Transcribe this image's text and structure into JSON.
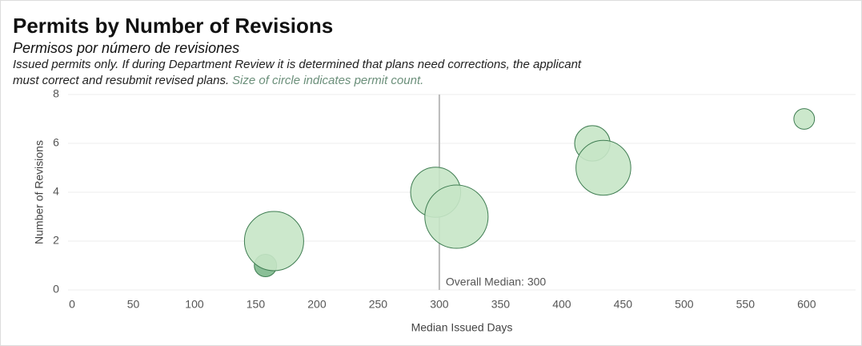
{
  "chart_data": {
    "type": "bubble",
    "title": "Permits by Number of Revisions",
    "subtitle": "Permisos por número de revisiones",
    "description": [
      "Issued permits only. If during Department Review it is determined that plans need corrections, the applicant",
      "must correct and resubmit revised plans."
    ],
    "size_note": "Size of circle indicates permit count.",
    "x_label": "Median Issued Days",
    "y_label": "Number of Revisions",
    "x": [
      158,
      165,
      297,
      314,
      425,
      434,
      598
    ],
    "values": [
      1,
      2,
      4,
      3,
      6,
      5,
      7
    ],
    "sizes": [
      20,
      140,
      100,
      160,
      50,
      120,
      17
    ],
    "colors": [
      "#7db88c",
      "#c6e6c6",
      "#c6e6c6",
      "#c6e6c6",
      "#c6e6c6",
      "#c6e6c6",
      "#c6e6c6"
    ],
    "stroke": "#3f7d52",
    "xlim": [
      0,
      640
    ],
    "ylim": [
      0,
      8
    ],
    "xticks": [
      0,
      50,
      100,
      150,
      200,
      250,
      300,
      350,
      400,
      450,
      500,
      550,
      600
    ],
    "yticks": [
      0,
      2,
      4,
      6,
      8
    ],
    "grid": true,
    "reference_line": {
      "x": 300,
      "label": "Overall Median: 300"
    }
  }
}
